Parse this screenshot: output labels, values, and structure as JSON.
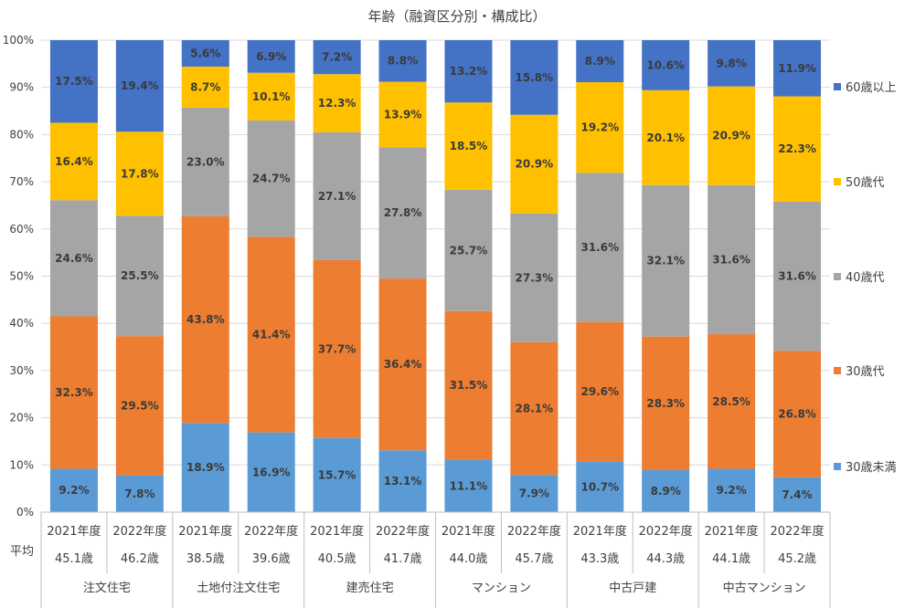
{
  "chart_data": {
    "type": "bar",
    "stacked": true,
    "title": "年齢（融資区分別・構成比）",
    "y_ticks": [
      "0%",
      "10%",
      "20%",
      "30%",
      "40%",
      "50%",
      "60%",
      "70%",
      "80%",
      "90%",
      "100%"
    ],
    "ylim": [
      0,
      100
    ],
    "grid": true,
    "legend_position": "right",
    "categories": [
      {
        "year": "2021年度",
        "avg": "45.1歳"
      },
      {
        "year": "2022年度",
        "avg": "46.2歳"
      },
      {
        "year": "2021年度",
        "avg": "38.5歳"
      },
      {
        "year": "2022年度",
        "avg": "39.6歳"
      },
      {
        "year": "2021年度",
        "avg": "40.5歳"
      },
      {
        "year": "2022年度",
        "avg": "41.7歳"
      },
      {
        "year": "2021年度",
        "avg": "44.0歳"
      },
      {
        "year": "2022年度",
        "avg": "45.7歳"
      },
      {
        "year": "2021年度",
        "avg": "43.3歳"
      },
      {
        "year": "2022年度",
        "avg": "44.3歳"
      },
      {
        "year": "2021年度",
        "avg": "44.1歳"
      },
      {
        "year": "2022年度",
        "avg": "45.2歳"
      }
    ],
    "avg_row_label": "平均",
    "groups": [
      "注文住宅",
      "土地付注文住宅",
      "建売住宅",
      "マンション",
      "中古戸建",
      "中古マンション"
    ],
    "series": [
      {
        "name": "30歳未満",
        "color": "#5b9bd5",
        "values": [
          9.2,
          7.8,
          18.9,
          16.9,
          15.7,
          13.1,
          11.1,
          7.9,
          10.7,
          8.9,
          9.2,
          7.4
        ],
        "labels": [
          "9.2%",
          "7.8%",
          "18.9%",
          "16.9%",
          "15.7%",
          "13.1%",
          "11.1%",
          "7.9%",
          "10.7%",
          "8.9%",
          "9.2%",
          "7.4%"
        ]
      },
      {
        "name": "30歳代",
        "color": "#ed7d31",
        "values": [
          32.3,
          29.5,
          43.8,
          41.4,
          37.7,
          36.4,
          31.5,
          28.1,
          29.6,
          28.3,
          28.5,
          26.8
        ],
        "labels": [
          "32.3%",
          "29.5%",
          "43.8%",
          "41.4%",
          "37.7%",
          "36.4%",
          "31.5%",
          "28.1%",
          "29.6%",
          "28.3%",
          "28.5%",
          "26.8%"
        ]
      },
      {
        "name": "40歳代",
        "color": "#a5a5a5",
        "values": [
          24.6,
          25.5,
          23.0,
          24.7,
          27.1,
          27.8,
          25.7,
          27.3,
          31.6,
          32.1,
          31.6,
          31.6
        ],
        "labels": [
          "24.6%",
          "25.5%",
          "23.0%",
          "24.7%",
          "27.1%",
          "27.8%",
          "25.7%",
          "27.3%",
          "31.6%",
          "32.1%",
          "31.6%",
          "31.6%"
        ]
      },
      {
        "name": "50歳代",
        "color": "#ffc000",
        "values": [
          16.4,
          17.8,
          8.7,
          10.1,
          12.3,
          13.9,
          18.5,
          20.9,
          19.2,
          20.1,
          20.9,
          22.3
        ],
        "labels": [
          "16.4%",
          "17.8%",
          "8.7%",
          "10.1%",
          "12.3%",
          "13.9%",
          "18.5%",
          "20.9%",
          "19.2%",
          "20.1%",
          "20.9%",
          "22.3%"
        ]
      },
      {
        "name": "60歳以上",
        "color": "#4472c4",
        "values": [
          17.5,
          19.4,
          5.6,
          6.9,
          7.2,
          8.8,
          13.2,
          15.8,
          8.9,
          10.6,
          9.8,
          11.9
        ],
        "labels": [
          "17.5%",
          "19.4%",
          "5.6%",
          "6.9%",
          "7.2%",
          "8.8%",
          "13.2%",
          "15.8%",
          "8.9%",
          "10.6%",
          "9.8%",
          "11.9%"
        ]
      }
    ]
  }
}
